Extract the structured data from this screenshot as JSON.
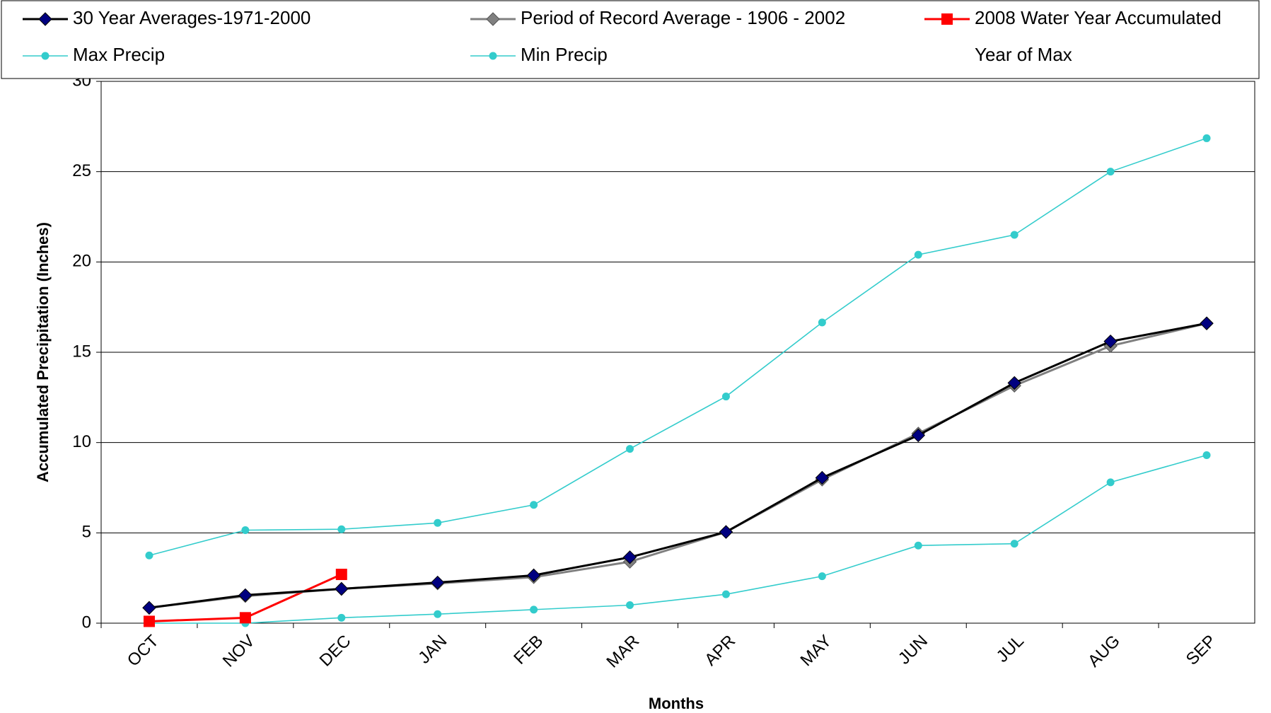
{
  "chart_data": {
    "type": "line",
    "x_label": "Months",
    "y_label": "Accumulated Precipitation (Inches)",
    "categories": [
      "OCT",
      "NOV",
      "DEC",
      "JAN",
      "FEB",
      "MAR",
      "APR",
      "MAY",
      "JUN",
      "JUL",
      "AUG",
      "SEP"
    ],
    "ylim": [
      0,
      30
    ],
    "yticks": [
      0,
      5,
      10,
      15,
      20,
      25,
      30
    ],
    "grid": true,
    "series": [
      {
        "name": "30 Year Averages-1971-2000",
        "color": "#000000",
        "marker": "diamond",
        "marker_color": "#000080",
        "values": [
          0.85,
          1.55,
          1.9,
          2.25,
          2.65,
          3.65,
          5.05,
          8.05,
          10.4,
          13.3,
          15.6,
          16.6
        ]
      },
      {
        "name": "Period of Record Average - 1906 - 2002",
        "color": "#808080",
        "marker": "diamond",
        "marker_color": "#808080",
        "values": [
          0.85,
          1.5,
          1.9,
          2.2,
          2.55,
          3.4,
          5.05,
          7.95,
          10.5,
          13.15,
          15.35,
          16.6
        ]
      },
      {
        "name": "2008 Water Year Accumulated",
        "color": "#ff0000",
        "marker": "square",
        "marker_color": "#ff0000",
        "values": [
          0.1,
          0.3,
          2.7,
          null,
          null,
          null,
          null,
          null,
          null,
          null,
          null,
          null
        ]
      },
      {
        "name": "Max Precip",
        "color": "#33cccc",
        "marker": "circle",
        "marker_color": "#33cccc",
        "values": [
          3.75,
          5.15,
          5.2,
          5.55,
          6.55,
          9.65,
          12.55,
          16.65,
          20.4,
          21.5,
          25.0,
          26.85
        ]
      },
      {
        "name": "Min Precip",
        "color": "#33cccc",
        "marker": "circle",
        "marker_color": "#33cccc",
        "values": [
          0.0,
          0.0,
          0.3,
          0.5,
          0.75,
          1.0,
          1.6,
          2.6,
          4.3,
          4.4,
          7.8,
          9.3
        ]
      },
      {
        "name": "Year of Max",
        "color": null,
        "marker": null,
        "marker_color": null,
        "values": [
          null,
          null,
          null,
          null,
          null,
          null,
          null,
          null,
          null,
          null,
          null,
          null
        ]
      }
    ]
  }
}
